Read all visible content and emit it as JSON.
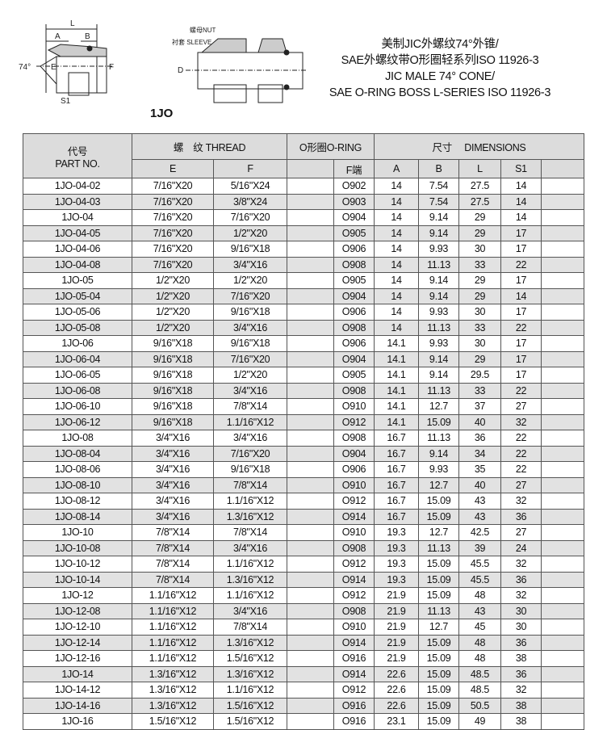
{
  "diagram": {
    "labels": {
      "L": "L",
      "A": "A",
      "B": "B",
      "angle": "74°",
      "E": "E",
      "F": "F",
      "S1": "S1",
      "D": "D",
      "nut": "螺母NUT",
      "sleeve": "衬套 SLEEVE"
    }
  },
  "titles": [
    "美制JIC外螺纹74°外锥/",
    "SAE外螺纹带O形圈轻系列ISO 11926-3",
    "JIC MALE 74° CONE/",
    "SAE O-RING BOSS L-SERIES ISO 11926-3"
  ],
  "model": "1JO",
  "table": {
    "headers": {
      "part_cn": "代号",
      "part_en": "PART NO.",
      "thread": "螺　纹  THREAD",
      "oring": "O形圈O-RING",
      "dims": "尺寸　 DIMENSIONS",
      "E": "E",
      "F": "F",
      "Fend": "F端",
      "A": "A",
      "B": "B",
      "L": "L",
      "S1": "S1"
    },
    "rows": [
      [
        "1JO-04-02",
        "7/16\"X20",
        "5/16\"X24",
        "O902",
        "14",
        "7.54",
        "27.5",
        "14"
      ],
      [
        "1JO-04-03",
        "7/16\"X20",
        "3/8\"X24",
        "O903",
        "14",
        "7.54",
        "27.5",
        "14"
      ],
      [
        "1JO-04",
        "7/16\"X20",
        "7/16\"X20",
        "O904",
        "14",
        "9.14",
        "29",
        "14"
      ],
      [
        "1JO-04-05",
        "7/16\"X20",
        "1/2\"X20",
        "O905",
        "14",
        "9.14",
        "29",
        "17"
      ],
      [
        "1JO-04-06",
        "7/16\"X20",
        "9/16\"X18",
        "O906",
        "14",
        "9.93",
        "30",
        "17"
      ],
      [
        "1JO-04-08",
        "7/16\"X20",
        "3/4\"X16",
        "O908",
        "14",
        "11.13",
        "33",
        "22"
      ],
      [
        "1JO-05",
        "1/2\"X20",
        "1/2\"X20",
        "O905",
        "14",
        "9.14",
        "29",
        "17"
      ],
      [
        "1JO-05-04",
        "1/2\"X20",
        "7/16\"X20",
        "O904",
        "14",
        "9.14",
        "29",
        "14"
      ],
      [
        "1JO-05-06",
        "1/2\"X20",
        "9/16\"X18",
        "O906",
        "14",
        "9.93",
        "30",
        "17"
      ],
      [
        "1JO-05-08",
        "1/2\"X20",
        "3/4\"X16",
        "O908",
        "14",
        "11.13",
        "33",
        "22"
      ],
      [
        "1JO-06",
        "9/16\"X18",
        "9/16\"X18",
        "O906",
        "14.1",
        "9.93",
        "30",
        "17"
      ],
      [
        "1JO-06-04",
        "9/16\"X18",
        "7/16\"X20",
        "O904",
        "14.1",
        "9.14",
        "29",
        "17"
      ],
      [
        "1JO-06-05",
        "9/16\"X18",
        "1/2\"X20",
        "O905",
        "14.1",
        "9.14",
        "29.5",
        "17"
      ],
      [
        "1JO-06-08",
        "9/16\"X18",
        "3/4\"X16",
        "O908",
        "14.1",
        "11.13",
        "33",
        "22"
      ],
      [
        "1JO-06-10",
        "9/16\"X18",
        "7/8\"X14",
        "O910",
        "14.1",
        "12.7",
        "37",
        "27"
      ],
      [
        "1JO-06-12",
        "9/16\"X18",
        "1.1/16\"X12",
        "O912",
        "14.1",
        "15.09",
        "40",
        "32"
      ],
      [
        "1JO-08",
        "3/4\"X16",
        "3/4\"X16",
        "O908",
        "16.7",
        "11.13",
        "36",
        "22"
      ],
      [
        "1JO-08-04",
        "3/4\"X16",
        "7/16\"X20",
        "O904",
        "16.7",
        "9.14",
        "34",
        "22"
      ],
      [
        "1JO-08-06",
        "3/4\"X16",
        "9/16\"X18",
        "O906",
        "16.7",
        "9.93",
        "35",
        "22"
      ],
      [
        "1JO-08-10",
        "3/4\"X16",
        "7/8\"X14",
        "O910",
        "16.7",
        "12.7",
        "40",
        "27"
      ],
      [
        "1JO-08-12",
        "3/4\"X16",
        "1.1/16\"X12",
        "O912",
        "16.7",
        "15.09",
        "43",
        "32"
      ],
      [
        "1JO-08-14",
        "3/4\"X16",
        "1.3/16\"X12",
        "O914",
        "16.7",
        "15.09",
        "43",
        "36"
      ],
      [
        "1JO-10",
        "7/8\"X14",
        "7/8\"X14",
        "O910",
        "19.3",
        "12.7",
        "42.5",
        "27"
      ],
      [
        "1JO-10-08",
        "7/8\"X14",
        "3/4\"X16",
        "O908",
        "19.3",
        "11.13",
        "39",
        "24"
      ],
      [
        "1JO-10-12",
        "7/8\"X14",
        "1.1/16\"X12",
        "O912",
        "19.3",
        "15.09",
        "45.5",
        "32"
      ],
      [
        "1JO-10-14",
        "7/8\"X14",
        "1.3/16\"X12",
        "O914",
        "19.3",
        "15.09",
        "45.5",
        "36"
      ],
      [
        "1JO-12",
        "1.1/16\"X12",
        "1.1/16\"X12",
        "O912",
        "21.9",
        "15.09",
        "48",
        "32"
      ],
      [
        "1JO-12-08",
        "1.1/16\"X12",
        "3/4\"X16",
        "O908",
        "21.9",
        "11.13",
        "43",
        "30"
      ],
      [
        "1JO-12-10",
        "1.1/16\"X12",
        "7/8\"X14",
        "O910",
        "21.9",
        "12.7",
        "45",
        "30"
      ],
      [
        "1JO-12-14",
        "1.1/16\"X12",
        "1.3/16\"X12",
        "O914",
        "21.9",
        "15.09",
        "48",
        "36"
      ],
      [
        "1JO-12-16",
        "1.1/16\"X12",
        "1.5/16\"X12",
        "O916",
        "21.9",
        "15.09",
        "48",
        "38"
      ],
      [
        "1JO-14",
        "1.3/16\"X12",
        "1.3/16\"X12",
        "O914",
        "22.6",
        "15.09",
        "48.5",
        "36"
      ],
      [
        "1JO-14-12",
        "1.3/16\"X12",
        "1.1/16\"X12",
        "O912",
        "22.6",
        "15.09",
        "48.5",
        "32"
      ],
      [
        "1JO-14-16",
        "1.3/16\"X12",
        "1.5/16\"X12",
        "O916",
        "22.6",
        "15.09",
        "50.5",
        "38"
      ],
      [
        "1JO-16",
        "1.5/16\"X12",
        "1.5/16\"X12",
        "O916",
        "23.1",
        "15.09",
        "49",
        "38"
      ]
    ]
  }
}
